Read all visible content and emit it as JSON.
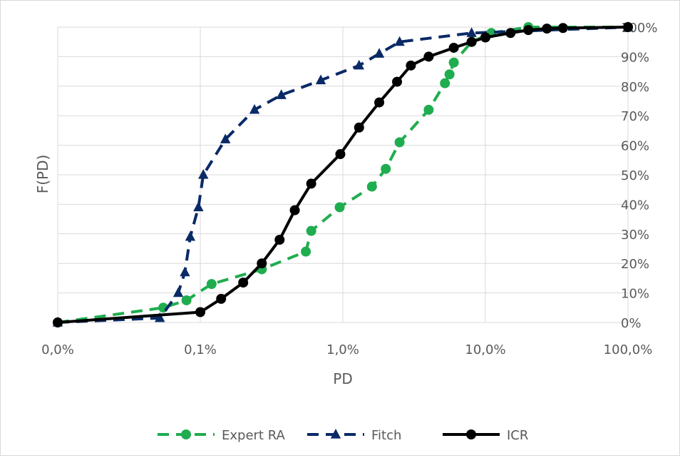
{
  "chart_data": {
    "type": "line",
    "x_scale": "log",
    "xlabel": "PD",
    "ylabel": "F(PD)",
    "x_ticks": [
      0.01,
      0.1,
      1,
      10,
      100
    ],
    "x_tick_labels": [
      "0,0%",
      "0,1%",
      "1,0%",
      "10,0%",
      "100,0%"
    ],
    "y_ticks": [
      0,
      10,
      20,
      30,
      40,
      50,
      60,
      70,
      80,
      90,
      100
    ],
    "y_tick_labels": [
      "0%",
      "10%",
      "20%",
      "30%",
      "40%",
      "50%",
      "60%",
      "70%",
      "80%",
      "90%",
      "100%"
    ],
    "ylim": [
      0,
      100
    ],
    "xlim": [
      0.01,
      100
    ],
    "grid": true,
    "legend_position": "bottom",
    "series": [
      {
        "name": "Expert RA",
        "color": "#1fad4f",
        "line_style": "dashed",
        "marker": "circle",
        "points": [
          [
            0.01,
            0
          ],
          [
            0.055,
            5
          ],
          [
            0.08,
            7.5
          ],
          [
            0.12,
            13
          ],
          [
            0.27,
            18
          ],
          [
            0.55,
            24
          ],
          [
            0.6,
            31
          ],
          [
            0.95,
            39
          ],
          [
            1.6,
            46
          ],
          [
            2.0,
            52
          ],
          [
            2.5,
            61
          ],
          [
            4.0,
            72
          ],
          [
            5.2,
            81
          ],
          [
            5.6,
            84
          ],
          [
            6.0,
            88
          ],
          [
            8.0,
            95
          ],
          [
            11.0,
            98
          ],
          [
            20.0,
            100
          ],
          [
            100,
            100
          ]
        ]
      },
      {
        "name": "Fitch",
        "color": "#0a2a66",
        "line_style": "dashed",
        "marker": "triangle",
        "points": [
          [
            0.01,
            0
          ],
          [
            0.052,
            1.5
          ],
          [
            0.07,
            10
          ],
          [
            0.078,
            17
          ],
          [
            0.085,
            29
          ],
          [
            0.097,
            39
          ],
          [
            0.105,
            50
          ],
          [
            0.15,
            62
          ],
          [
            0.24,
            72
          ],
          [
            0.37,
            77
          ],
          [
            0.7,
            82
          ],
          [
            1.3,
            87
          ],
          [
            1.8,
            91
          ],
          [
            2.5,
            95
          ],
          [
            8.0,
            98
          ],
          [
            100,
            100
          ]
        ]
      },
      {
        "name": "ICR",
        "color": "#000000",
        "line_style": "solid",
        "marker": "circle",
        "points": [
          [
            0.01,
            0
          ],
          [
            0.1,
            3.5
          ],
          [
            0.14,
            8
          ],
          [
            0.2,
            13.5
          ],
          [
            0.27,
            20
          ],
          [
            0.36,
            28
          ],
          [
            0.46,
            38
          ],
          [
            0.6,
            47
          ],
          [
            0.96,
            57
          ],
          [
            1.3,
            66
          ],
          [
            1.8,
            74.5
          ],
          [
            2.4,
            81.5
          ],
          [
            3.0,
            87
          ],
          [
            4.0,
            90
          ],
          [
            6.0,
            93
          ],
          [
            8.0,
            95
          ],
          [
            10.0,
            96.5
          ],
          [
            15.0,
            98
          ],
          [
            20.0,
            99
          ],
          [
            27.0,
            99.5
          ],
          [
            35.0,
            99.7
          ],
          [
            100,
            100
          ]
        ]
      }
    ]
  }
}
